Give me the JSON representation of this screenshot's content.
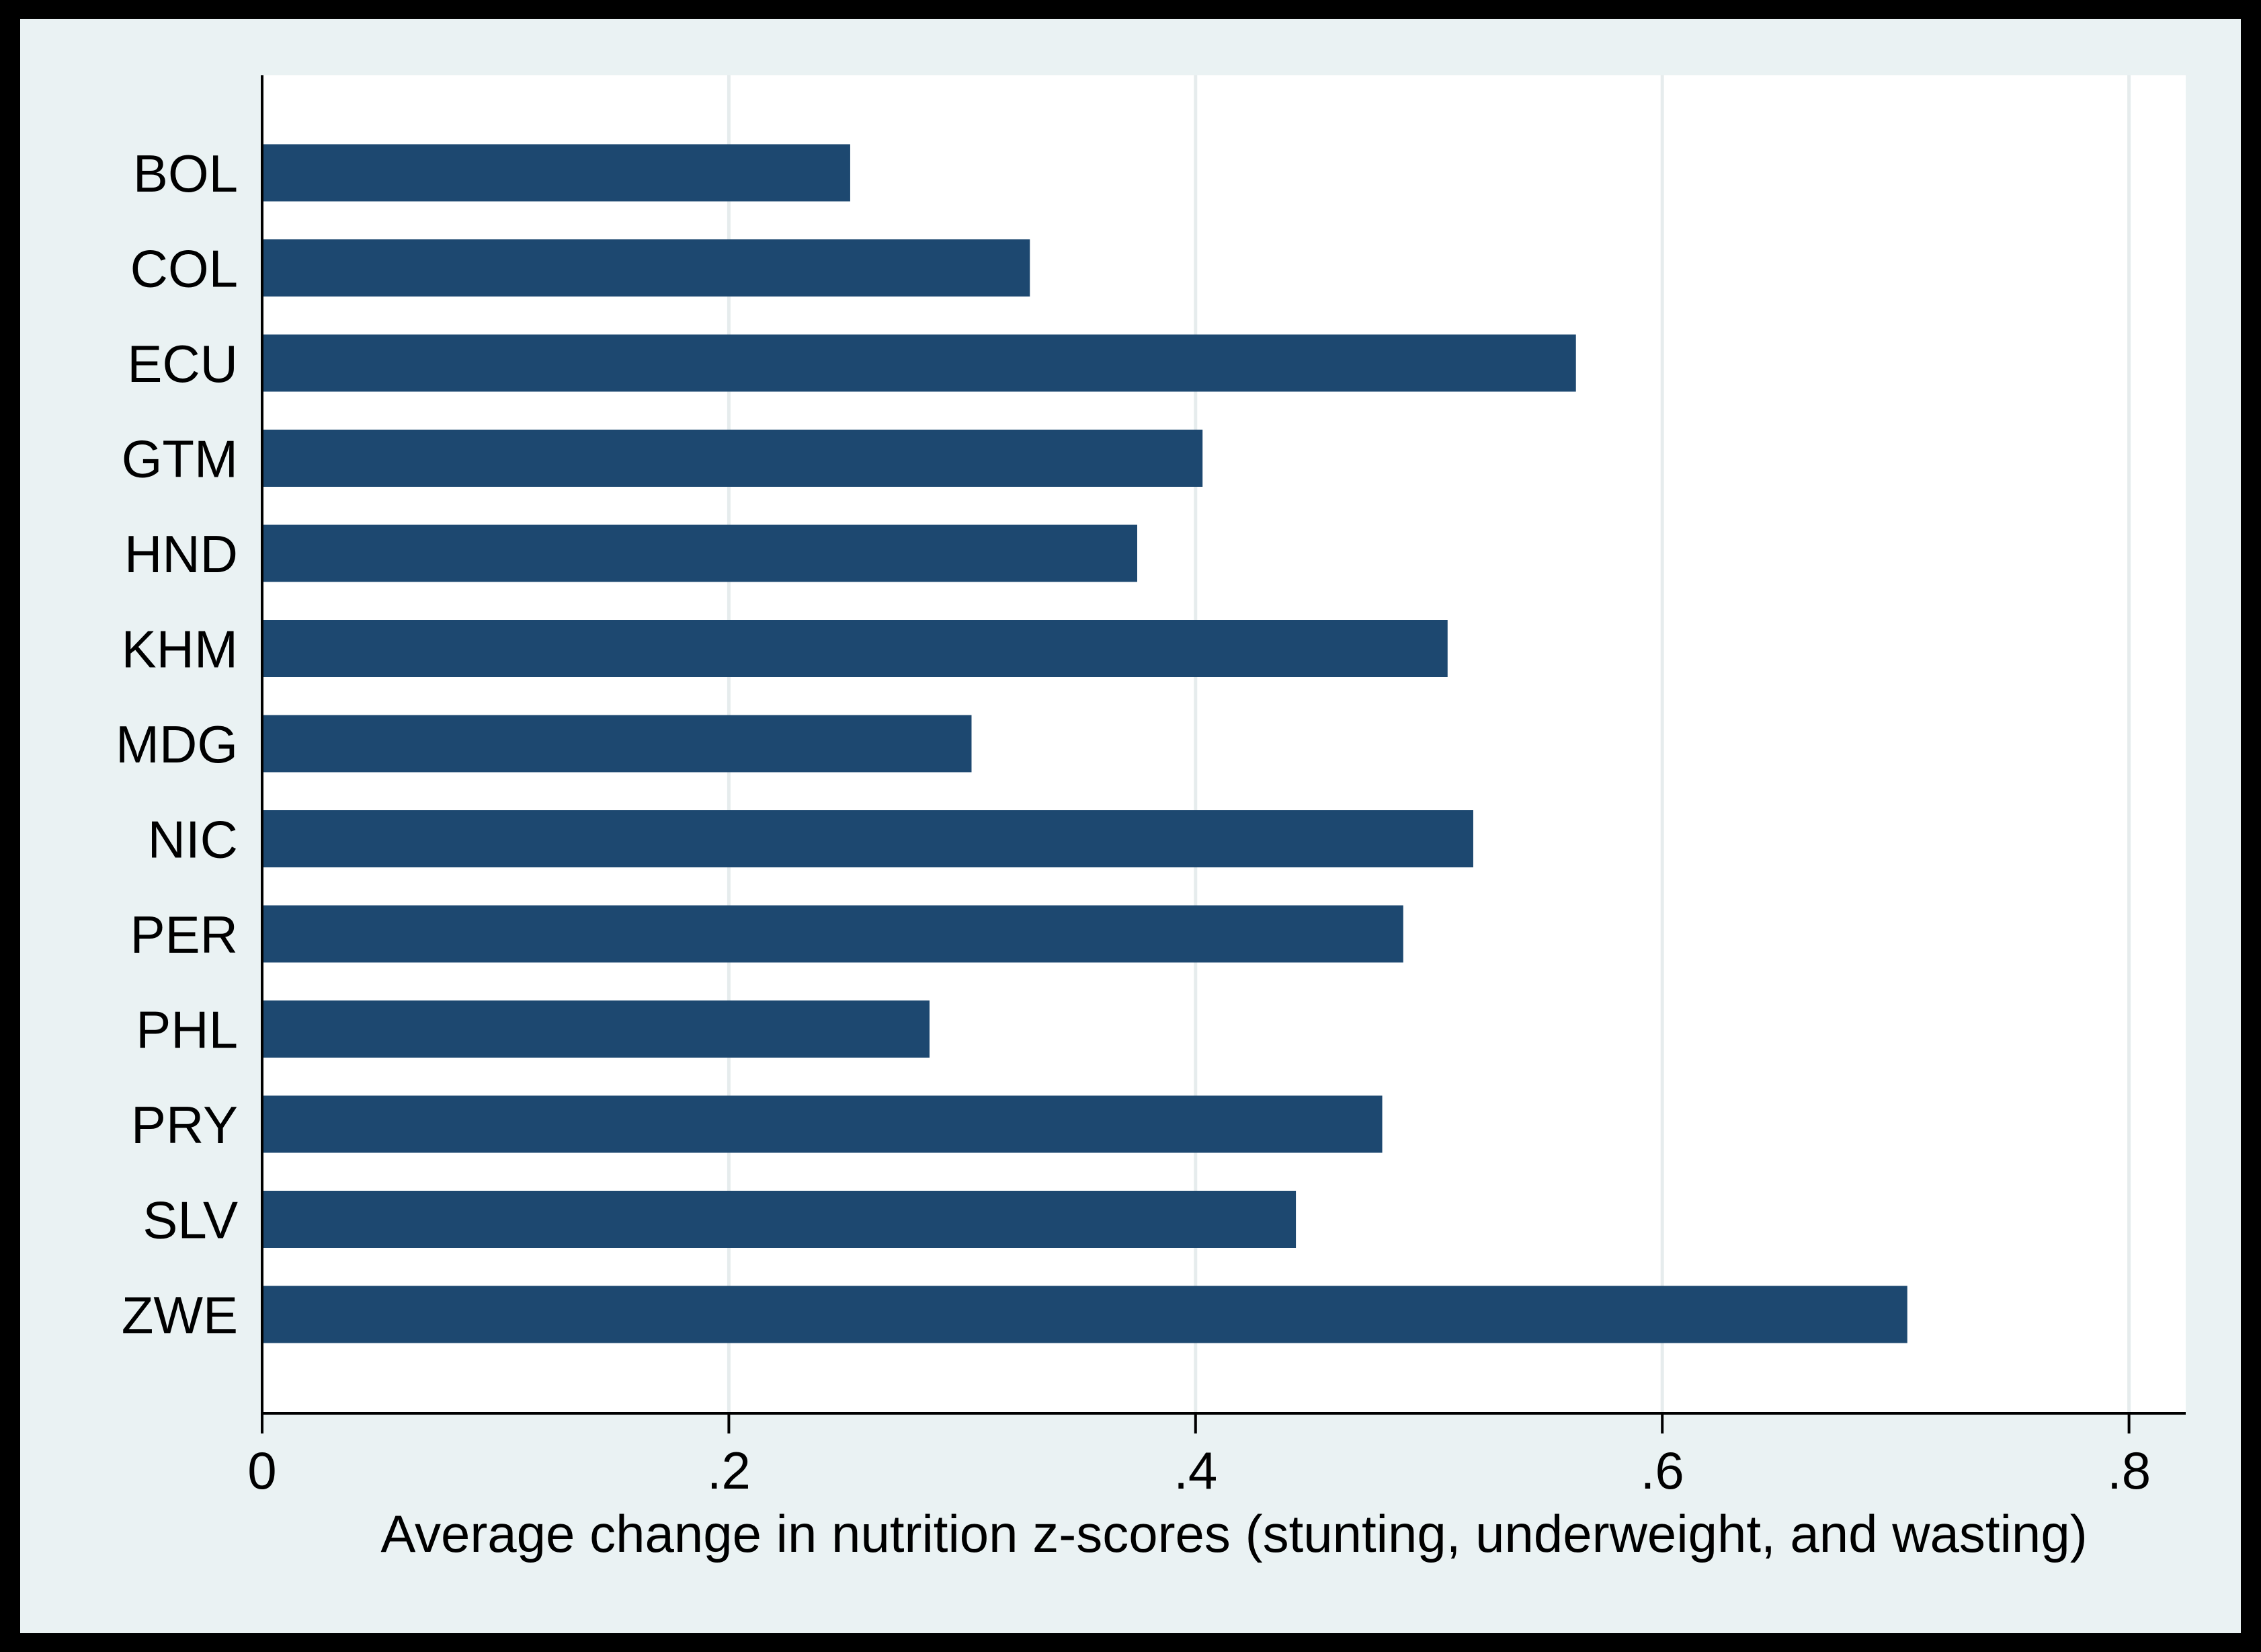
{
  "chart_data": {
    "type": "bar",
    "orientation": "horizontal",
    "categories": [
      "BOL",
      "COL",
      "ECU",
      "GTM",
      "HND",
      "KHM",
      "MDG",
      "NIC",
      "PER",
      "PHL",
      "PRY",
      "SLV",
      "ZWE"
    ],
    "values": [
      0.252,
      0.329,
      0.563,
      0.403,
      0.375,
      0.508,
      0.304,
      0.519,
      0.489,
      0.286,
      0.48,
      0.443,
      0.705
    ],
    "title": "",
    "xlabel": "Average change in nutrition z-scores (stunting, underweight, and wasting)",
    "ylabel": "",
    "xlim": [
      0,
      0.825
    ],
    "xticks": [
      0,
      0.2,
      0.4,
      0.6,
      0.8
    ],
    "xtick_labels": [
      "0",
      ".2",
      ".4",
      ".6",
      ".8"
    ],
    "grid": "vertical",
    "legend": "none",
    "colors": {
      "bar": "#1d4870",
      "page_border": "#000000",
      "outer_background": "#eaf2f3",
      "plot_background": "#ffffff",
      "gridline": "#e6eced",
      "axis": "#000000",
      "text": "#000000"
    }
  }
}
